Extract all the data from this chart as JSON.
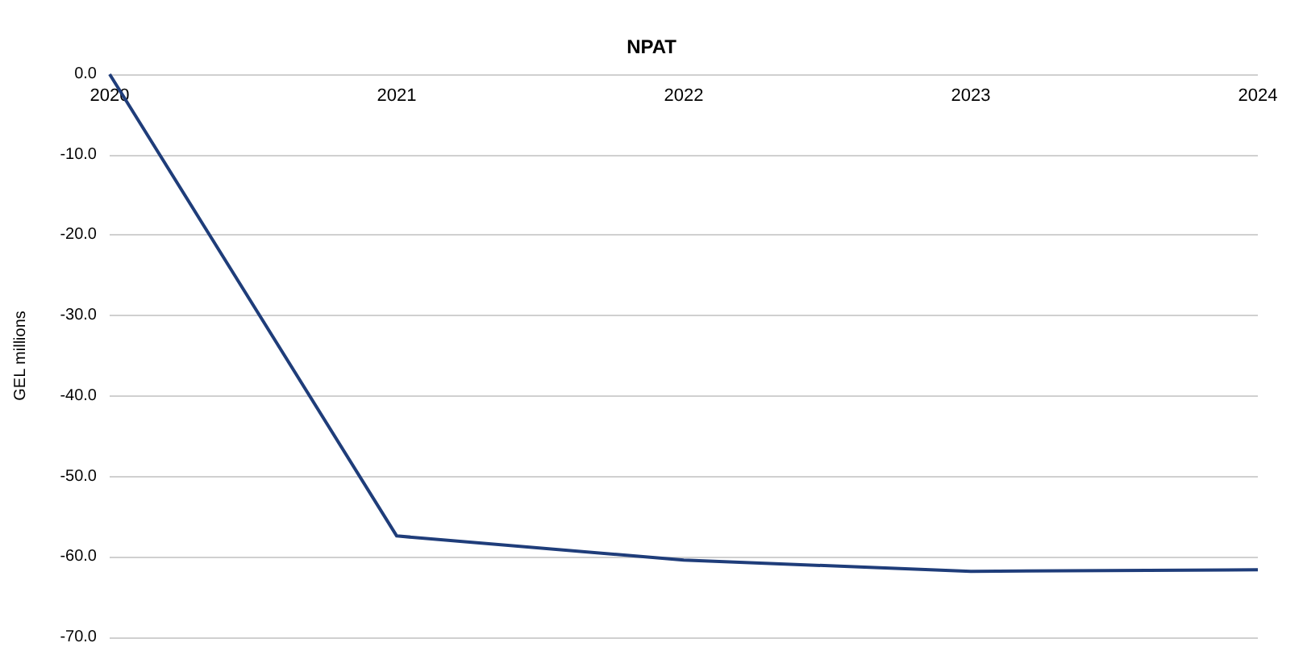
{
  "chart_data": {
    "type": "line",
    "title": "NPAT",
    "ylabel": "GEL millions",
    "categories": [
      "2020",
      "2021",
      "2022",
      "2023",
      "2024"
    ],
    "series": [
      {
        "color": "#1f3d7a",
        "values": [
          0,
          -57.4,
          -60.4,
          -61.8,
          -61.6
        ]
      }
    ],
    "ylim": [
      -70,
      0
    ],
    "yticks": [
      {
        "value": 0,
        "label": "0.0"
      },
      {
        "value": -10,
        "label": "-10.0"
      },
      {
        "value": -20,
        "label": "-20.0"
      },
      {
        "value": -30,
        "label": "-30.0"
      },
      {
        "value": -40,
        "label": "-40.0"
      },
      {
        "value": -50,
        "label": "-50.0"
      },
      {
        "value": -60,
        "label": "-60.0"
      },
      {
        "value": -70,
        "label": "-70.0"
      }
    ],
    "grid": "y",
    "marker": "none",
    "line_style": "solid"
  }
}
